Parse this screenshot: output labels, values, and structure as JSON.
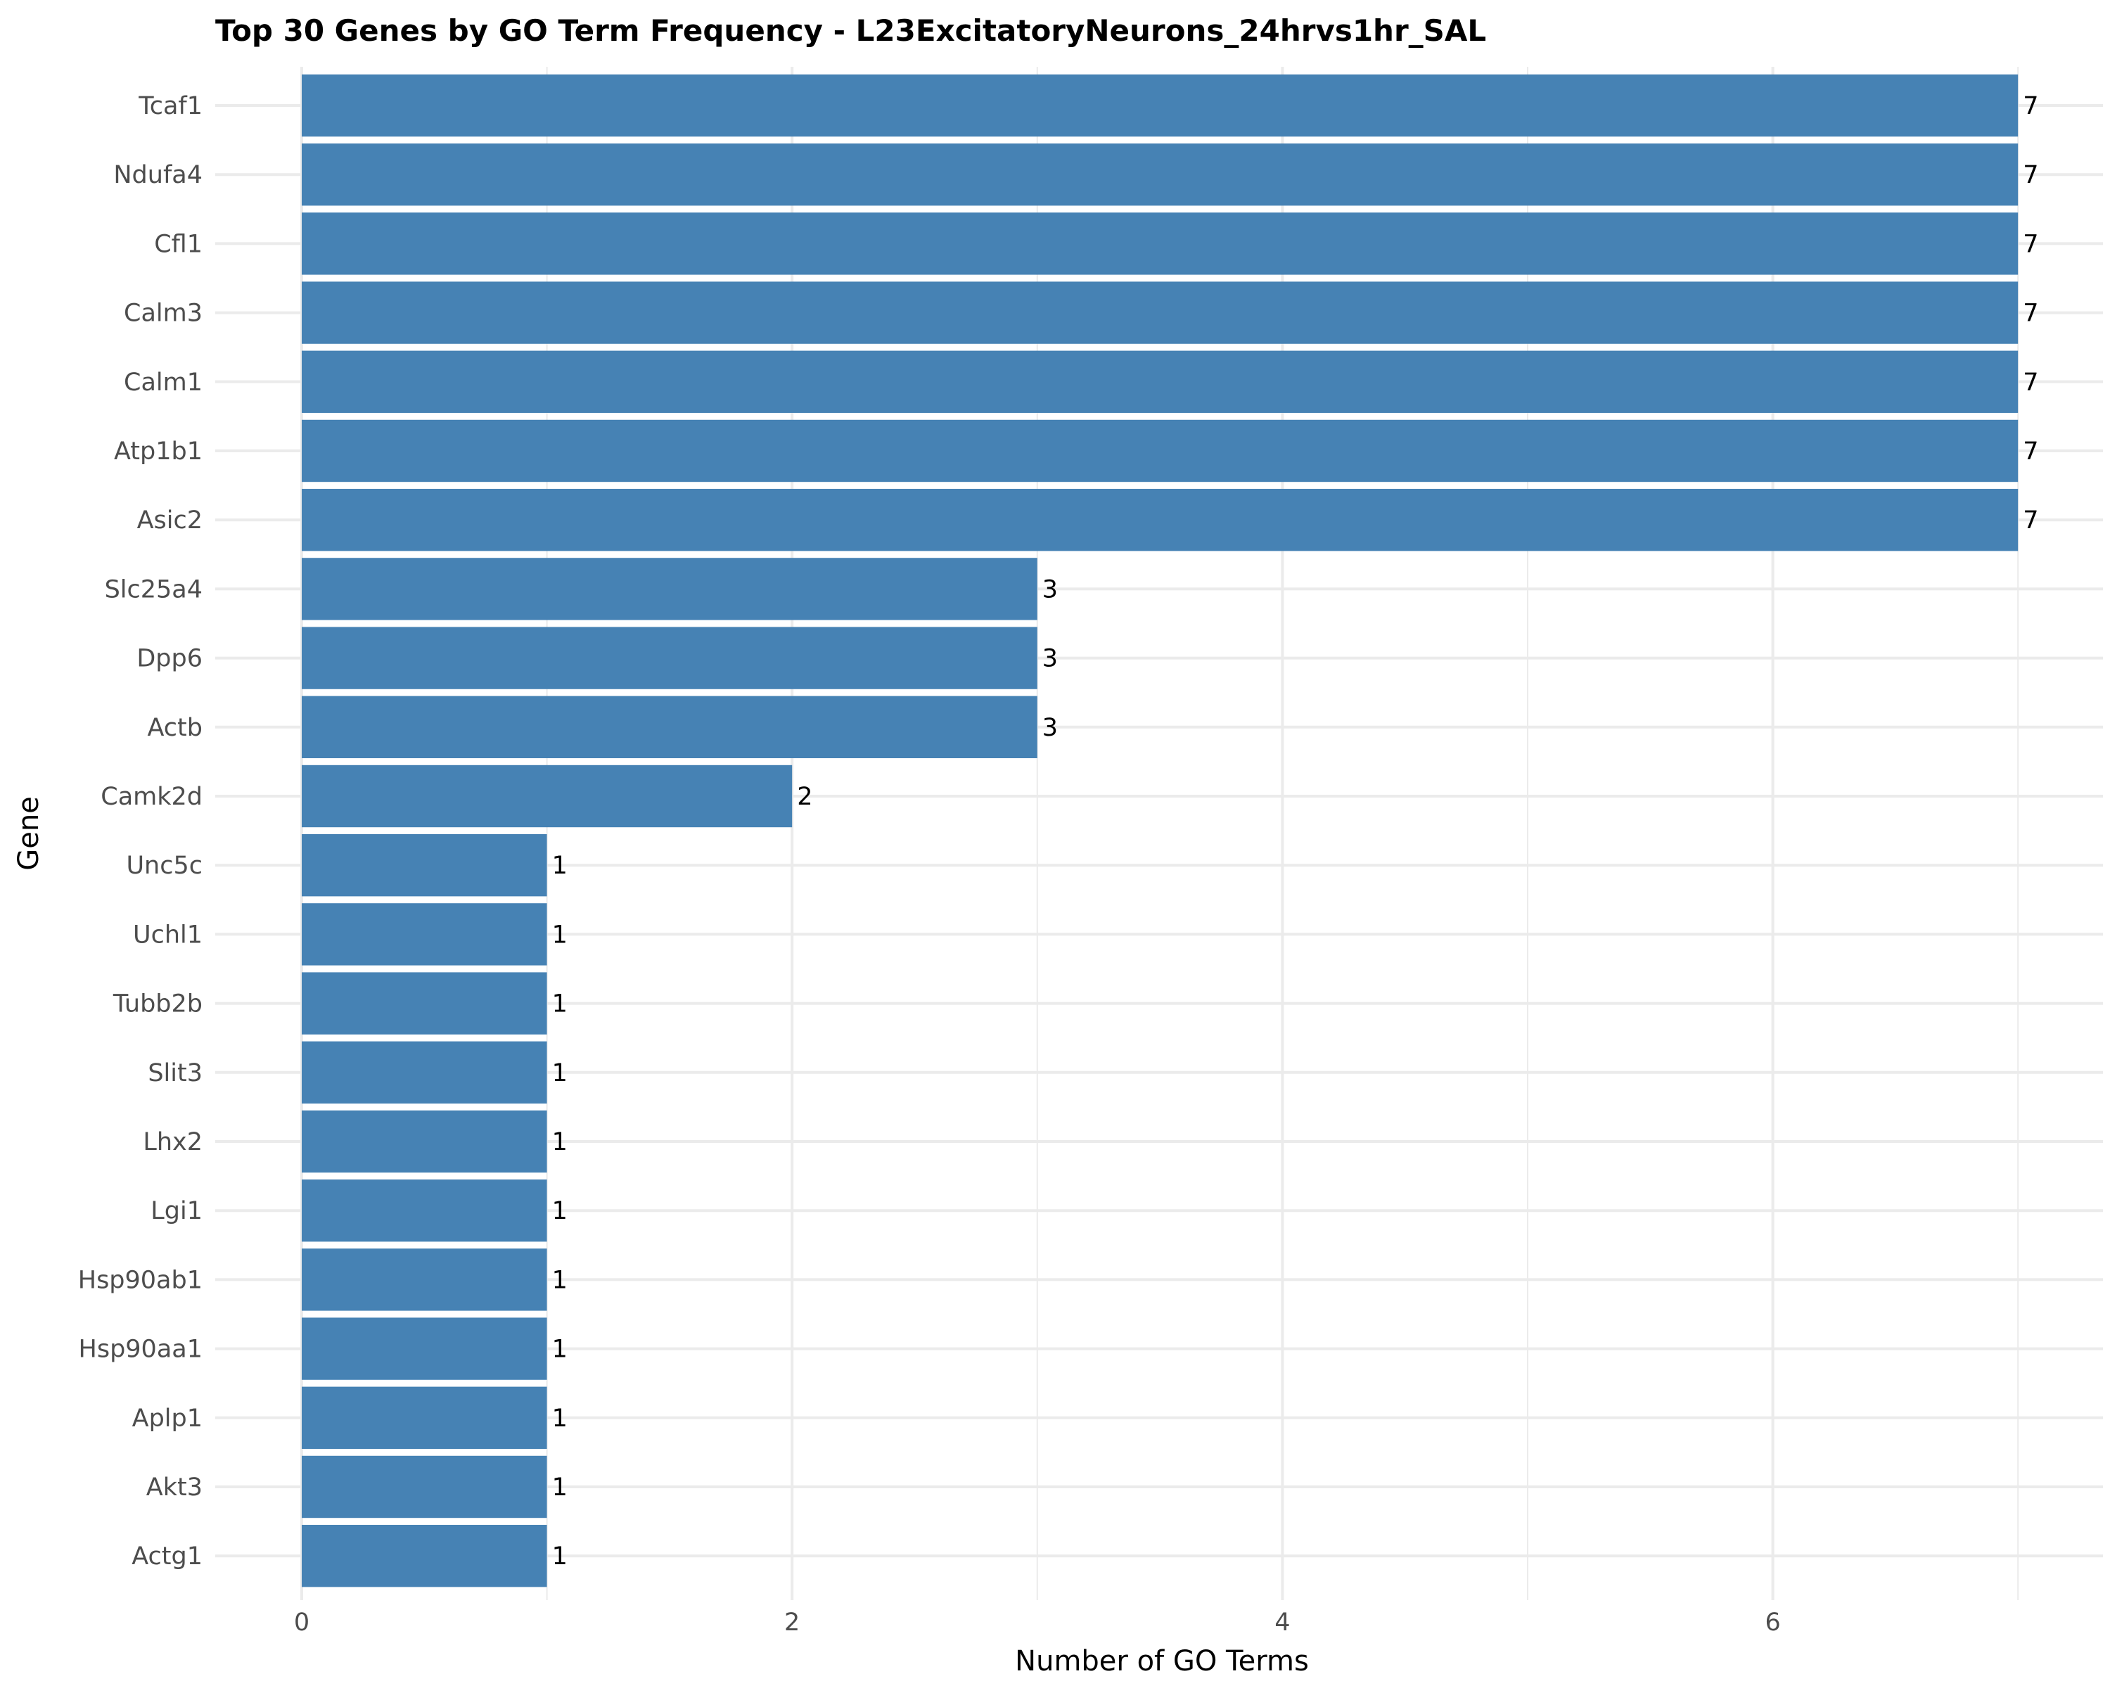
{
  "chart_data": {
    "type": "bar",
    "orientation": "horizontal",
    "title": "Top 30 Genes by GO Term Frequency - L23ExcitatoryNeurons_24hrvs1hr_SAL",
    "xlabel": "Number of GO Terms",
    "ylabel": "Gene",
    "xlim": [
      0,
      7
    ],
    "xticks": [
      0,
      2,
      4,
      6
    ],
    "grid": true,
    "bar_color": "#4682b4",
    "categories": [
      "Tcaf1",
      "Ndufa4",
      "Cfl1",
      "Calm3",
      "Calm1",
      "Atp1b1",
      "Asic2",
      "Slc25a4",
      "Dpp6",
      "Actb",
      "Camk2d",
      "Unc5c",
      "Uchl1",
      "Tubb2b",
      "Slit3",
      "Lhx2",
      "Lgi1",
      "Hsp90ab1",
      "Hsp90aa1",
      "Aplp1",
      "Akt3",
      "Actg1"
    ],
    "values": [
      7,
      7,
      7,
      7,
      7,
      7,
      7,
      3,
      3,
      3,
      2,
      1,
      1,
      1,
      1,
      1,
      1,
      1,
      1,
      1,
      1,
      1
    ]
  }
}
